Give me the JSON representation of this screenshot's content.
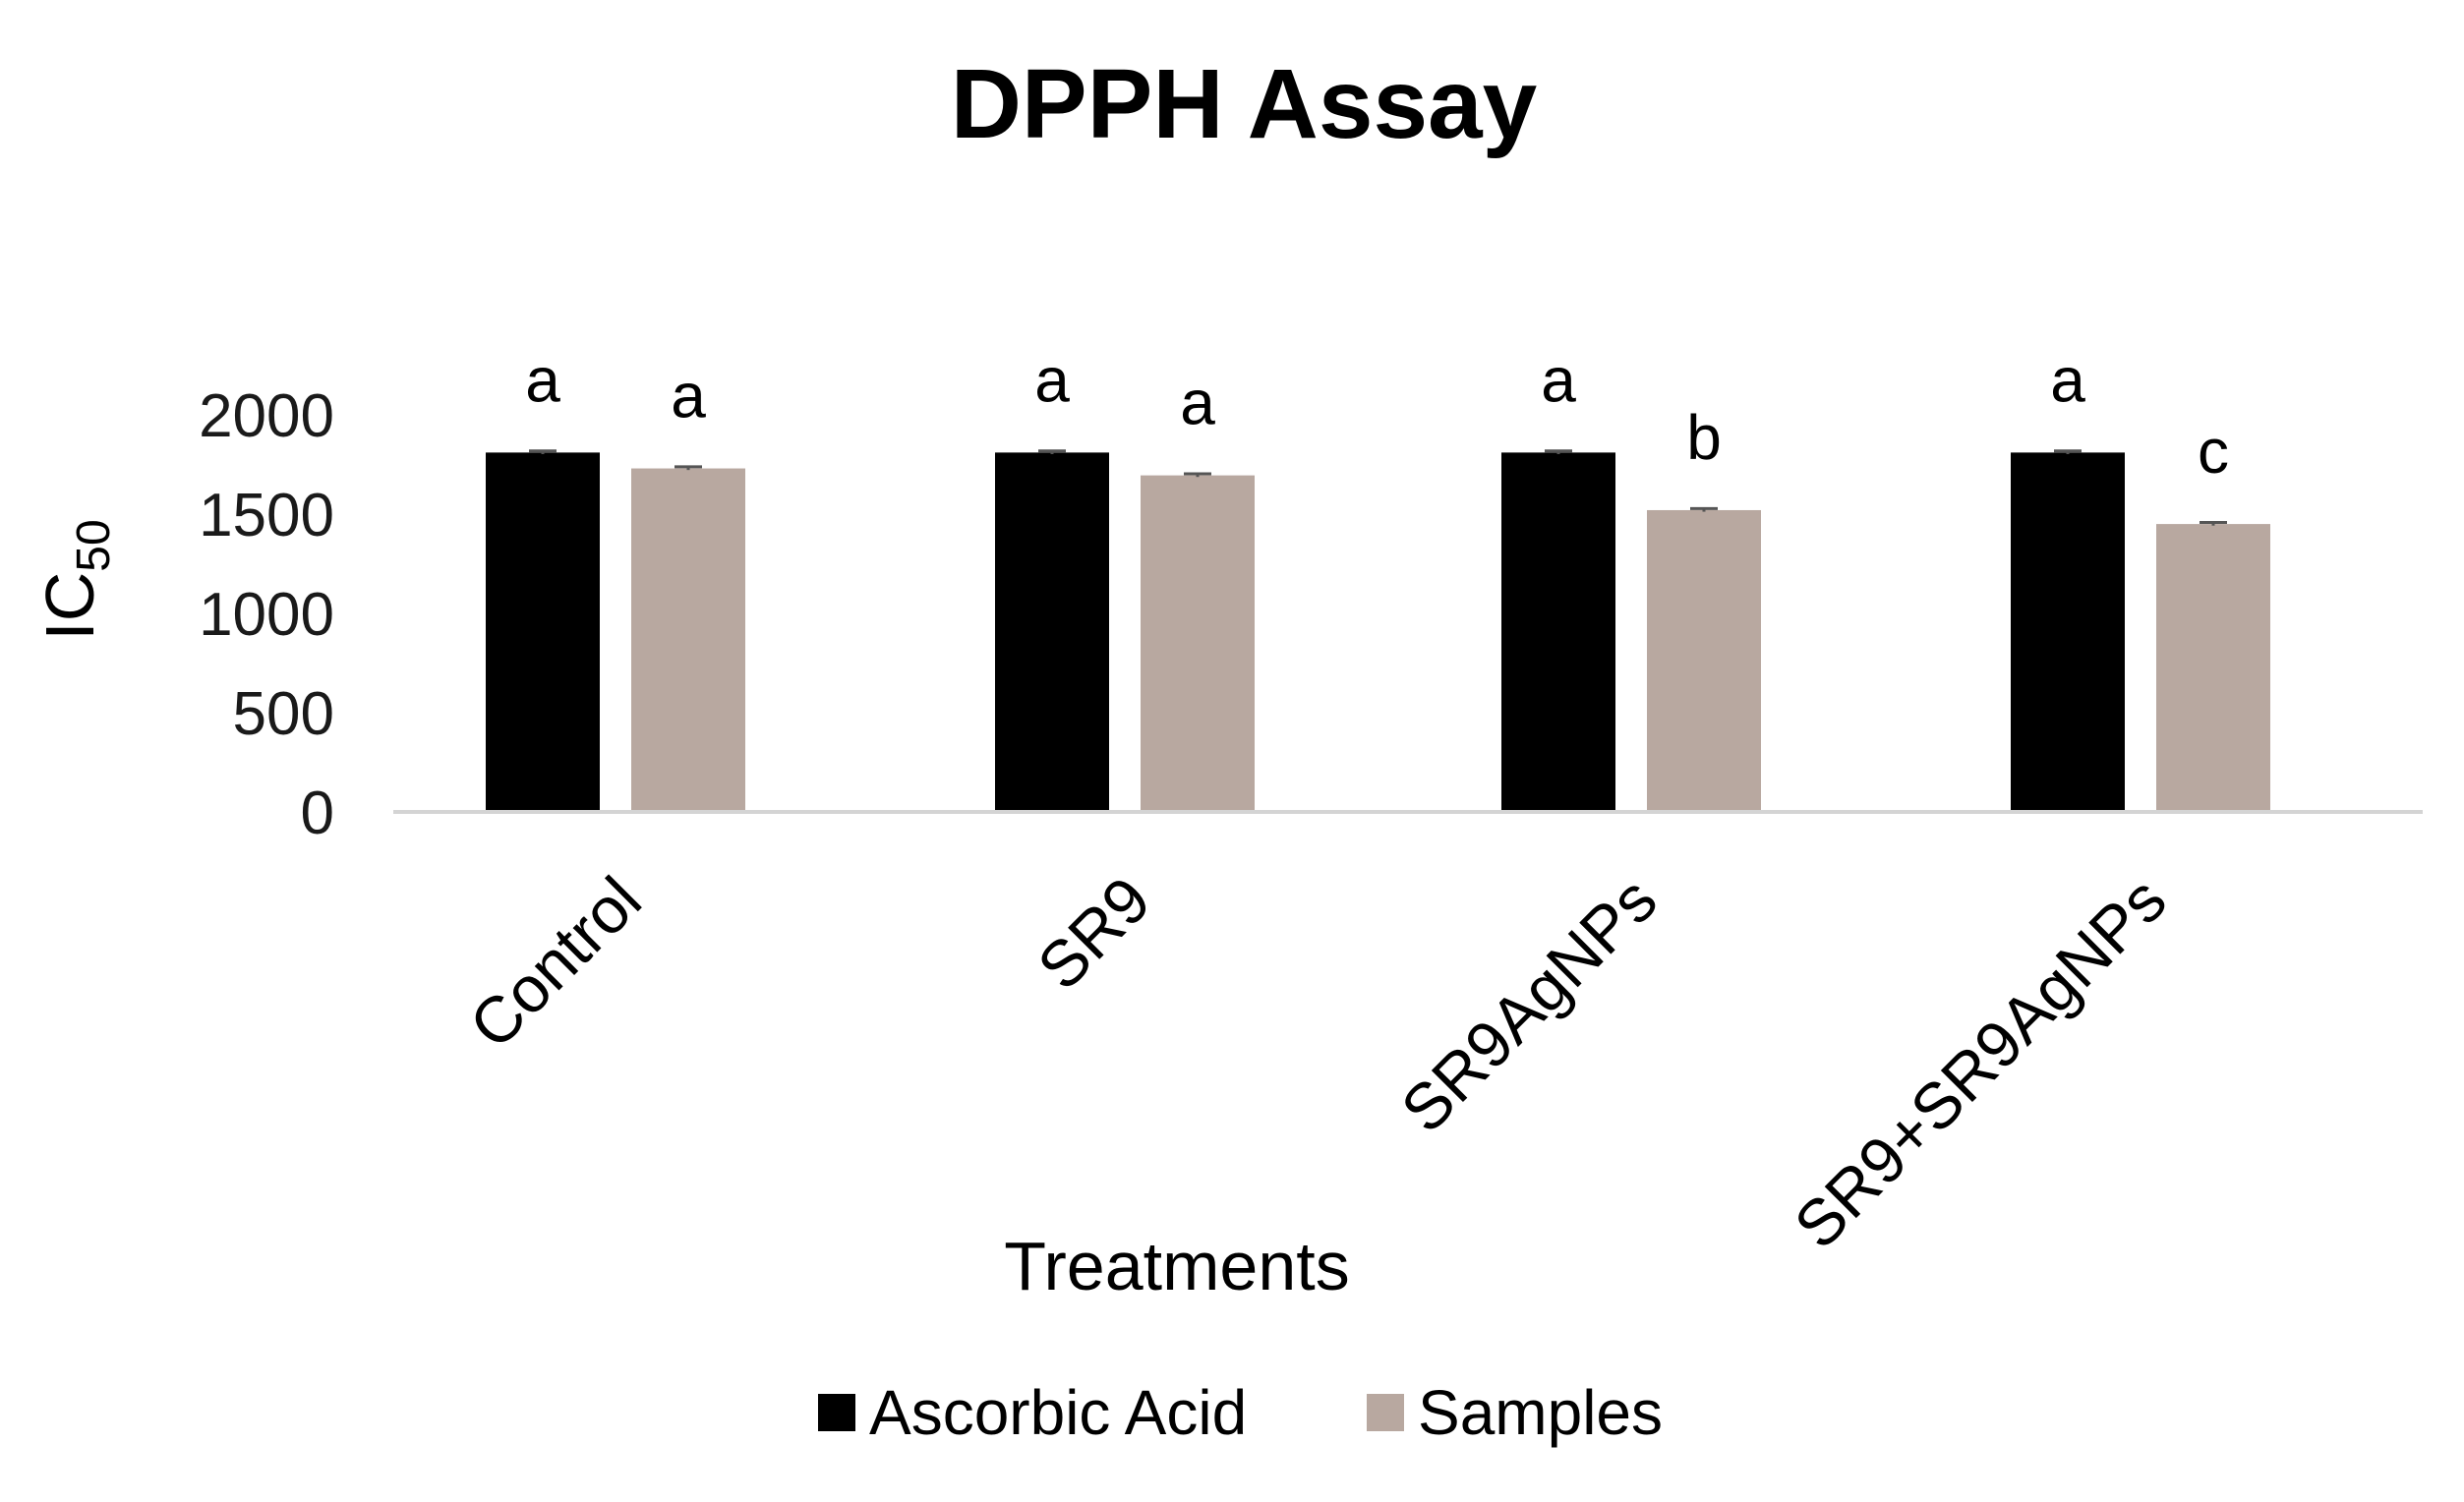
{
  "chart_data": {
    "type": "bar",
    "title": "DPPH Assay",
    "xlabel": "Treatments",
    "ylabel": "IC",
    "ylabel_subscript": "50",
    "ylim": [
      0,
      2000
    ],
    "yticks": [
      0,
      500,
      1000,
      1500,
      2000
    ],
    "grid": false,
    "legend_position": "bottom",
    "categories": [
      "Control",
      "SR9",
      "SR9AgNPs",
      "SR9+SR9AgNPs"
    ],
    "series": [
      {
        "name": "Ascorbic Acid",
        "color": "#000000",
        "values": [
          1810,
          1810,
          1810,
          1810
        ],
        "errors": [
          8,
          8,
          8,
          8
        ],
        "significance": [
          "a",
          "a",
          "a",
          "a"
        ]
      },
      {
        "name": "Samples",
        "color": "#b8a8a0",
        "values": [
          1730,
          1695,
          1520,
          1450
        ],
        "errors": [
          8,
          8,
          8,
          8
        ],
        "significance": [
          "a",
          "a",
          "b",
          "c"
        ]
      }
    ]
  }
}
